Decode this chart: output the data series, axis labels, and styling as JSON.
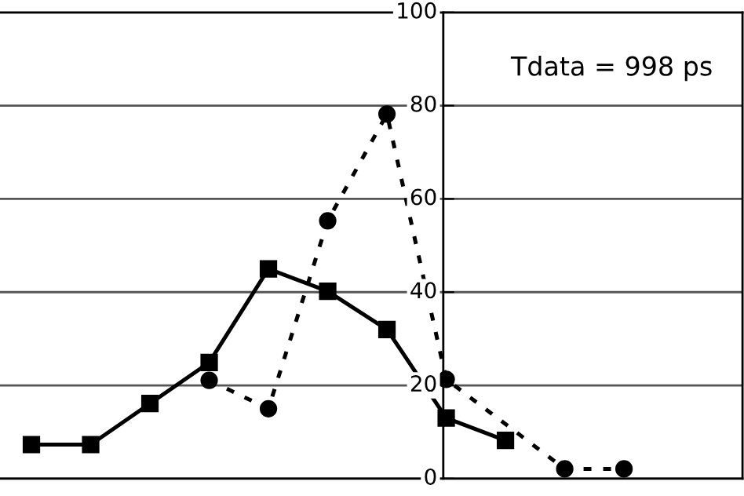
{
  "chart_data": {
    "type": "line",
    "annotations": [
      "Tdata = 998 ps"
    ],
    "categories": [
      null,
      null,
      null,
      null,
      null,
      null,
      null,
      null,
      null,
      null,
      null
    ],
    "series": [
      {
        "color": "#000000",
        "marker": "square",
        "line_style": "solid",
        "values": [
          7.3,
          7.3,
          16.1,
          24.9,
          45.0,
          40.2,
          32.0,
          13.0,
          8.2,
          null,
          null
        ]
      },
      {
        "color": "#000000",
        "marker": "circle",
        "line_style": "dotted",
        "values": [
          null,
          null,
          null,
          21.1,
          15.0,
          55.3,
          78.2,
          21.3,
          null,
          2.1,
          2.1
        ]
      }
    ],
    "ylim": [
      0,
      100
    ],
    "yticks": [
      0,
      20,
      40,
      60,
      80,
      100
    ],
    "grid": "y",
    "tick_labels": "y"
  }
}
